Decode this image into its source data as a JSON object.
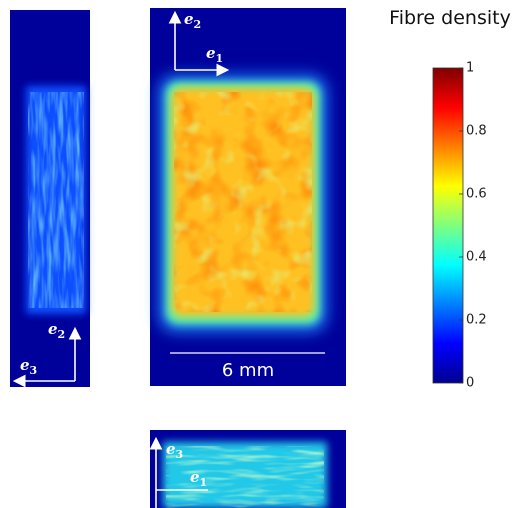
{
  "title": "Fibre density",
  "colorbar": {
    "lim": [
      0,
      1
    ],
    "ticks": [
      0,
      0.2,
      0.4,
      0.6,
      0.8,
      1
    ]
  },
  "scale_bar": "6 mm",
  "axes": {
    "center_vertical": {
      "letter": "e",
      "index": "2"
    },
    "center_horizontal": {
      "letter": "e",
      "index": "1"
    },
    "left_vertical": {
      "letter": "e",
      "index": "2"
    },
    "left_horizontal": {
      "letter": "e",
      "index": "3"
    },
    "bottom_vertical": {
      "letter": "e",
      "index": "3"
    },
    "bottom_horizontal": {
      "letter": "e",
      "index": "1"
    }
  }
}
